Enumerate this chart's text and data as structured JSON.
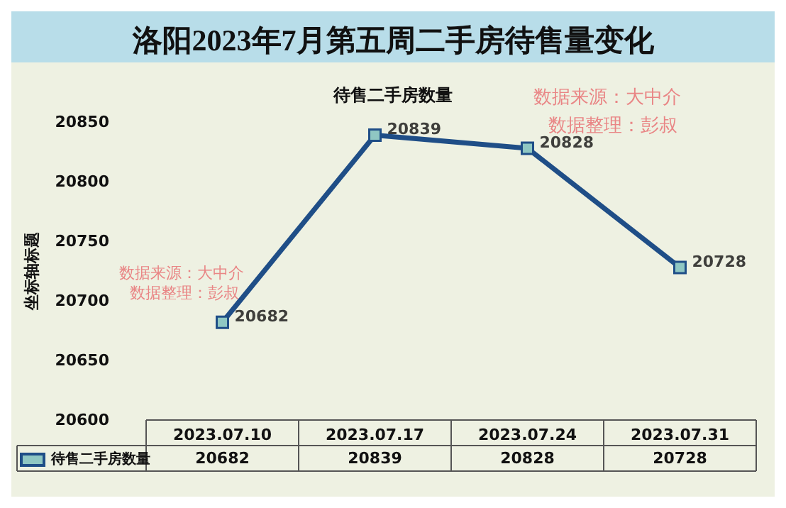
{
  "chart_data": {
    "type": "line",
    "title": "洛阳2023年7月第五周二手房待售量变化",
    "subtitle": "待售二手房数量",
    "ylabel": "坐标轴标题",
    "categories": [
      "2023.07.10",
      "2023.07.17",
      "2023.07.24",
      "2023.07.31"
    ],
    "series": [
      {
        "name": "待售二手房数量",
        "color": "#1f4e87",
        "values": [
          20682,
          20839,
          20828,
          20728
        ]
      }
    ],
    "ylim": [
      20600,
      20850
    ],
    "yticks": [
      20600,
      20650,
      20700,
      20750,
      20800,
      20850
    ],
    "grid": false,
    "legend": "bottom left",
    "marker": "square",
    "line_style": "solid",
    "data_labels": true,
    "annotations": [
      "数据来源：大中介",
      "数据整理：彭叔",
      "数据来源：大中介",
      "数据整理：彭叔",
      {
        "text": "20682",
        "x": "2023.07.10",
        "y": 20682
      },
      {
        "text": "20839",
        "x": "2023.07.17",
        "y": 20839
      },
      {
        "text": "20828",
        "x": "2023.07.24",
        "y": 20828
      },
      {
        "text": "20728",
        "x": "2023.07.31",
        "y": 20728
      }
    ]
  }
}
